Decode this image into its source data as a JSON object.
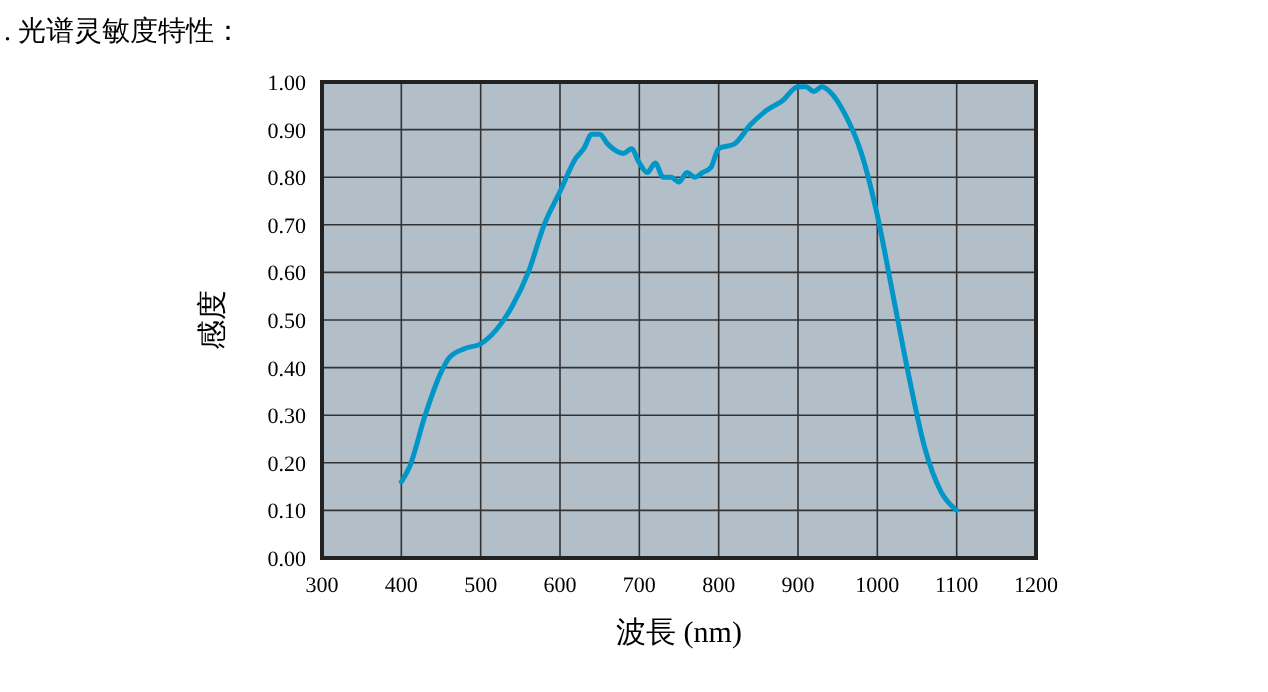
{
  "chart_data": {
    "type": "line",
    "title": ". 光谱灵敏度特性：",
    "xlabel": "波長 (nm)",
    "ylabel": "感度",
    "grid": true,
    "xlim": [
      300,
      1200
    ],
    "xticks": [
      300,
      400,
      500,
      600,
      700,
      800,
      900,
      1000,
      1100,
      1200
    ],
    "ylim": [
      0,
      1
    ],
    "yticks": [
      {
        "value": 0,
        "label": "0.00"
      },
      {
        "value": 0.1,
        "label": "0.10"
      },
      {
        "value": 0.2,
        "label": "0.20"
      },
      {
        "value": 0.3,
        "label": "0.30"
      },
      {
        "value": 0.4,
        "label": "0.40"
      },
      {
        "value": 0.5,
        "label": "0.50"
      },
      {
        "value": 0.6,
        "label": "0.60"
      },
      {
        "value": 0.7,
        "label": "0.70"
      },
      {
        "value": 0.8,
        "label": "0.80"
      },
      {
        "value": 0.9,
        "label": "0.90"
      },
      {
        "value": 1,
        "label": "1.00"
      }
    ],
    "series": [
      {
        "color": "#0096c8",
        "x": [
          400,
          410,
          430,
          450,
          460,
          480,
          500,
          520,
          540,
          560,
          580,
          600,
          620,
          630,
          640,
          650,
          660,
          680,
          690,
          700,
          710,
          720,
          730,
          740,
          750,
          760,
          770,
          780,
          790,
          800,
          820,
          840,
          860,
          880,
          900,
          910,
          920,
          930,
          940,
          960,
          980,
          1000,
          1020,
          1040,
          1060,
          1080,
          1100
        ],
        "values": [
          0.16,
          0.19,
          0.3,
          0.39,
          0.42,
          0.44,
          0.45,
          0.48,
          0.53,
          0.6,
          0.7,
          0.77,
          0.84,
          0.86,
          0.89,
          0.89,
          0.87,
          0.85,
          0.86,
          0.83,
          0.81,
          0.83,
          0.8,
          0.8,
          0.79,
          0.81,
          0.8,
          0.81,
          0.82,
          0.86,
          0.87,
          0.91,
          0.94,
          0.96,
          0.99,
          0.99,
          0.98,
          0.99,
          0.98,
          0.93,
          0.85,
          0.72,
          0.55,
          0.38,
          0.23,
          0.14,
          0.1
        ]
      }
    ]
  }
}
